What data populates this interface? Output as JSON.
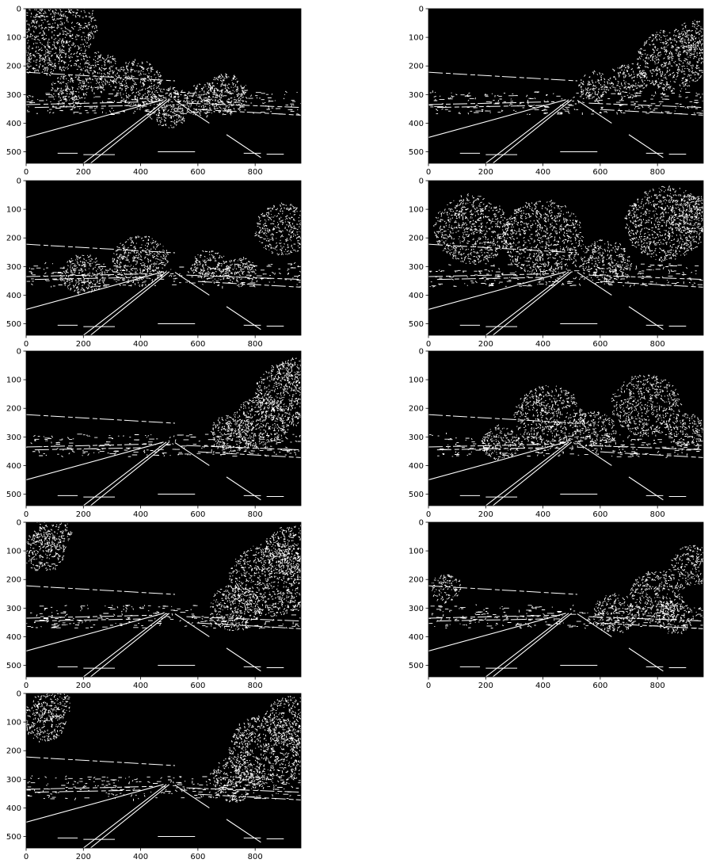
{
  "figure": {
    "panel_count": 9,
    "image_width_units": 960,
    "image_height_units": 540,
    "x_ticks": [
      0,
      200,
      400,
      600,
      800
    ],
    "y_ticks": [
      0,
      100,
      200,
      300,
      400,
      500
    ],
    "x_tick_labels": [
      "0",
      "200",
      "400",
      "600",
      "800"
    ],
    "y_tick_labels": [
      "0",
      "100",
      "200",
      "300",
      "400",
      "500"
    ],
    "background_color": "#000000",
    "edge_color": "#ffffff",
    "page_color": "#ffffff"
  },
  "panels": [
    {
      "trees": [
        [
          60,
          60,
          170
        ],
        [
          250,
          220,
          70
        ],
        [
          390,
          260,
          80
        ],
        [
          500,
          345,
          70
        ],
        [
          620,
          320,
          60
        ],
        [
          700,
          300,
          70
        ],
        [
          150,
          290,
          60
        ]
      ]
    },
    {
      "trees": [
        [
          580,
          270,
          50
        ],
        [
          700,
          250,
          60
        ],
        [
          850,
          180,
          110
        ],
        [
          930,
          100,
          60
        ]
      ]
    },
    {
      "trees": [
        [
          200,
          330,
          70
        ],
        [
          400,
          280,
          90
        ],
        [
          640,
          300,
          60
        ],
        [
          750,
          320,
          50
        ],
        [
          900,
          170,
          90
        ]
      ]
    },
    {
      "trees": [
        [
          150,
          170,
          120
        ],
        [
          400,
          200,
          130
        ],
        [
          620,
          280,
          80
        ],
        [
          830,
          150,
          130
        ],
        [
          920,
          120,
          70
        ]
      ]
    },
    {
      "trees": [
        [
          720,
          290,
          70
        ],
        [
          820,
          250,
          90
        ],
        [
          920,
          150,
          110
        ],
        [
          940,
          80,
          60
        ]
      ]
    },
    {
      "trees": [
        [
          250,
          320,
          60
        ],
        [
          420,
          230,
          110
        ],
        [
          580,
          280,
          70
        ],
        [
          760,
          190,
          110
        ],
        [
          900,
          280,
          60
        ]
      ]
    },
    {
      "trees": [
        [
          60,
          100,
          70
        ],
        [
          90,
          40,
          60
        ],
        [
          730,
          300,
          80
        ],
        [
          850,
          200,
          130
        ],
        [
          930,
          100,
          90
        ]
      ]
    },
    {
      "trees": [
        [
          60,
          230,
          50
        ],
        [
          650,
          320,
          70
        ],
        [
          800,
          260,
          90
        ],
        [
          920,
          150,
          70
        ],
        [
          860,
          330,
          60
        ]
      ]
    },
    {
      "trees": [
        [
          60,
          100,
          70
        ],
        [
          90,
          40,
          60
        ],
        [
          730,
          300,
          80
        ],
        [
          850,
          200,
          130
        ],
        [
          930,
          100,
          90
        ]
      ]
    }
  ]
}
